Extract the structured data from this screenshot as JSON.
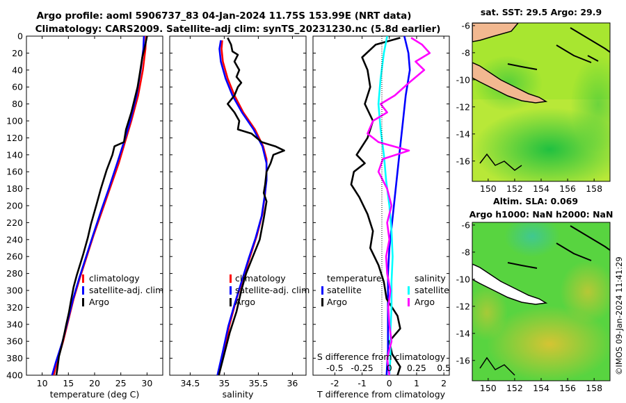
{
  "header": {
    "title_line1": "Argo profile: aoml 5906737_83 04-Jan-2024 11.75S 153.99E (NRT data)",
    "title_line2": "Climatology: CARS2009. Satellite-adj clim: synTS_20231230.nc (5.8d earlier)"
  },
  "colors": {
    "climatology": "#ff0000",
    "satellite": "#0000ff",
    "argo": "#000000",
    "s_satellite": "#00ffff",
    "s_argo": "#ff00ff"
  },
  "chart_data": [
    {
      "id": "temperature",
      "type": "line",
      "xlabel": "temperature (deg C)",
      "ylabel": "",
      "xlim": [
        7,
        33
      ],
      "ylim": [
        400,
        0
      ],
      "xticks": [
        "10",
        "15",
        "20",
        "25",
        "30"
      ],
      "yticks": [
        "0",
        "20",
        "40",
        "60",
        "80",
        "100",
        "120",
        "140",
        "160",
        "180",
        "200",
        "220",
        "240",
        "260",
        "280",
        "300",
        "320",
        "340",
        "360",
        "380",
        "400"
      ],
      "legend": [
        "climatology",
        "satellite-adj. clim",
        "Argo"
      ],
      "series": [
        {
          "name": "climatology",
          "color": "#ff0000",
          "points": [
            [
              29.8,
              0
            ],
            [
              29.7,
              15
            ],
            [
              29.2,
              40
            ],
            [
              28.3,
              70
            ],
            [
              27.0,
              100
            ],
            [
              25.8,
              125
            ],
            [
              24.6,
              150
            ],
            [
              22.9,
              180
            ],
            [
              21.5,
              205
            ],
            [
              19.8,
              235
            ],
            [
              18.5,
              260
            ],
            [
              17.2,
              285
            ],
            [
              16.0,
              310
            ],
            [
              15.0,
              335
            ],
            [
              14.0,
              360
            ],
            [
              12.8,
              385
            ],
            [
              12.2,
              400
            ]
          ]
        },
        {
          "name": "satellite-adj. clim",
          "color": "#0000ff",
          "points": [
            [
              29.4,
              0
            ],
            [
              29.3,
              15
            ],
            [
              28.8,
              40
            ],
            [
              28.0,
              70
            ],
            [
              26.8,
              100
            ],
            [
              25.6,
              125
            ],
            [
              24.3,
              150
            ],
            [
              22.7,
              180
            ],
            [
              21.3,
              205
            ],
            [
              19.7,
              235
            ],
            [
              18.4,
              260
            ],
            [
              17.1,
              285
            ],
            [
              15.9,
              310
            ],
            [
              14.9,
              335
            ],
            [
              13.9,
              360
            ],
            [
              12.6,
              385
            ],
            [
              11.9,
              400
            ]
          ]
        },
        {
          "name": "Argo",
          "color": "#000000",
          "points": [
            [
              30.0,
              0
            ],
            [
              29.8,
              6
            ],
            [
              29.6,
              12
            ],
            [
              29.1,
              25
            ],
            [
              28.6,
              45
            ],
            [
              28.2,
              60
            ],
            [
              27.6,
              75
            ],
            [
              27.0,
              90
            ],
            [
              26.0,
              110
            ],
            [
              25.6,
              125
            ],
            [
              23.8,
              130
            ],
            [
              23.4,
              140
            ],
            [
              22.3,
              158
            ],
            [
              21.2,
              180
            ],
            [
              20.3,
              200
            ],
            [
              19.3,
              222
            ],
            [
              18.7,
              238
            ],
            [
              17.8,
              258
            ],
            [
              17.2,
              270
            ],
            [
              16.6,
              282
            ],
            [
              16.0,
              296
            ],
            [
              15.5,
              312
            ],
            [
              15.1,
              326
            ],
            [
              14.6,
              340
            ],
            [
              14.2,
              352
            ],
            [
              13.7,
              366
            ],
            [
              13.2,
              378
            ],
            [
              12.9,
              392
            ],
            [
              12.7,
              400
            ]
          ]
        }
      ]
    },
    {
      "id": "salinity",
      "type": "line",
      "xlabel": "salinity",
      "ylabel": "",
      "xlim": [
        34.2,
        36.2
      ],
      "ylim": [
        400,
        0
      ],
      "xticks": [
        "34.5",
        "35",
        "35.5",
        "36"
      ],
      "legend": [
        "climatology",
        "satellite-adj. clim",
        "Argo"
      ],
      "series": [
        {
          "name": "climatology",
          "color": "#ff0000",
          "points": [
            [
              34.97,
              5
            ],
            [
              34.96,
              15
            ],
            [
              34.98,
              30
            ],
            [
              35.05,
              50
            ],
            [
              35.15,
              70
            ],
            [
              35.28,
              90
            ],
            [
              35.45,
              110
            ],
            [
              35.57,
              130
            ],
            [
              35.62,
              145
            ],
            [
              35.62,
              165
            ],
            [
              35.6,
              185
            ],
            [
              35.56,
              210
            ],
            [
              35.48,
              235
            ],
            [
              35.38,
              260
            ],
            [
              35.28,
              285
            ],
            [
              35.18,
              310
            ],
            [
              35.08,
              340
            ],
            [
              35.0,
              370
            ],
            [
              34.92,
              400
            ]
          ]
        },
        {
          "name": "satellite-adj. clim",
          "color": "#0000ff",
          "points": [
            [
              34.95,
              5
            ],
            [
              34.93,
              15
            ],
            [
              34.95,
              30
            ],
            [
              35.02,
              50
            ],
            [
              35.12,
              70
            ],
            [
              35.26,
              90
            ],
            [
              35.43,
              110
            ],
            [
              35.56,
              130
            ],
            [
              35.62,
              150
            ],
            [
              35.62,
              170
            ],
            [
              35.59,
              190
            ],
            [
              35.55,
              212
            ],
            [
              35.46,
              238
            ],
            [
              35.36,
              262
            ],
            [
              35.26,
              288
            ],
            [
              35.16,
              314
            ],
            [
              35.06,
              342
            ],
            [
              34.98,
              372
            ],
            [
              34.9,
              400
            ]
          ]
        },
        {
          "name": "Argo",
          "color": "#000000",
          "points": [
            [
              35.05,
              2
            ],
            [
              35.1,
              10
            ],
            [
              35.12,
              18
            ],
            [
              35.2,
              22
            ],
            [
              35.15,
              30
            ],
            [
              35.22,
              40
            ],
            [
              35.18,
              48
            ],
            [
              35.25,
              55
            ],
            [
              35.2,
              60
            ],
            [
              35.15,
              70
            ],
            [
              35.05,
              80
            ],
            [
              35.15,
              90
            ],
            [
              35.22,
              100
            ],
            [
              35.2,
              110
            ],
            [
              35.4,
              115
            ],
            [
              35.55,
              125
            ],
            [
              35.75,
              130
            ],
            [
              35.88,
              135
            ],
            [
              35.72,
              140
            ],
            [
              35.68,
              150
            ],
            [
              35.62,
              160
            ],
            [
              35.6,
              175
            ],
            [
              35.58,
              185
            ],
            [
              35.62,
              195
            ],
            [
              35.58,
              215
            ],
            [
              35.52,
              240
            ],
            [
              35.42,
              260
            ],
            [
              35.32,
              280
            ],
            [
              35.25,
              300
            ],
            [
              35.18,
              325
            ],
            [
              35.08,
              350
            ],
            [
              35.0,
              375
            ],
            [
              34.92,
              400
            ]
          ]
        }
      ]
    },
    {
      "id": "difference",
      "type": "line",
      "xlabel": "T difference from climatology",
      "xlabel_top": "S difference from climatology",
      "xlim": [
        -2.8,
        2.2
      ],
      "ylim": [
        400,
        0
      ],
      "xticks": [
        "-2",
        "-1",
        "0",
        "1",
        "2"
      ],
      "xticks_s": [
        "-0.5",
        "-0.25",
        "0",
        "0.25",
        "0.5"
      ],
      "legend_t_title": "temperature",
      "legend_s_title": "salinity",
      "legend_t": [
        "satellite",
        "Argo"
      ],
      "legend_s": [
        "satellite",
        "Argo"
      ],
      "series": [
        {
          "name": "T satellite",
          "color": "#0000ff",
          "points": [
            [
              0.55,
              0
            ],
            [
              0.7,
              20
            ],
            [
              0.75,
              40
            ],
            [
              0.6,
              70
            ],
            [
              0.5,
              100
            ],
            [
              0.4,
              130
            ],
            [
              0.3,
              160
            ],
            [
              0.2,
              190
            ],
            [
              0.1,
              220
            ],
            [
              0.0,
              250
            ],
            [
              -0.05,
              280
            ],
            [
              -0.05,
              310
            ],
            [
              -0.05,
              340
            ],
            [
              -0.05,
              370
            ],
            [
              -0.1,
              400
            ]
          ]
        },
        {
          "name": "T Argo",
          "color": "#000000",
          "points": [
            [
              0.4,
              2
            ],
            [
              -0.5,
              10
            ],
            [
              -1.0,
              25
            ],
            [
              -0.8,
              40
            ],
            [
              -0.7,
              60
            ],
            [
              -0.9,
              80
            ],
            [
              -0.6,
              100
            ],
            [
              -0.8,
              120
            ],
            [
              -1.2,
              140
            ],
            [
              -0.9,
              150
            ],
            [
              -1.3,
              160
            ],
            [
              -1.4,
              175
            ],
            [
              -1.1,
              190
            ],
            [
              -0.8,
              210
            ],
            [
              -0.6,
              230
            ],
            [
              -0.7,
              250
            ],
            [
              -0.4,
              270
            ],
            [
              -0.2,
              290
            ],
            [
              -0.1,
              310
            ],
            [
              0.3,
              330
            ],
            [
              0.4,
              345
            ],
            [
              0.0,
              360
            ],
            [
              0.1,
              375
            ],
            [
              0.4,
              390
            ],
            [
              0.3,
              400
            ]
          ]
        },
        {
          "name": "S satellite",
          "color": "#00ffff",
          "points": [
            [
              -0.02,
              0
            ],
            [
              -0.05,
              20
            ],
            [
              -0.08,
              50
            ],
            [
              -0.1,
              80
            ],
            [
              -0.08,
              110
            ],
            [
              -0.05,
              140
            ],
            [
              -0.03,
              170
            ],
            [
              0.0,
              200
            ],
            [
              0.02,
              230
            ],
            [
              0.03,
              260
            ],
            [
              0.02,
              290
            ],
            [
              0.02,
              320
            ],
            [
              0.01,
              350
            ],
            [
              0.01,
              380
            ],
            [
              0.0,
              400
            ]
          ]
        },
        {
          "name": "S Argo",
          "color": "#ff00ff",
          "points": [
            [
              0.2,
              2
            ],
            [
              0.3,
              10
            ],
            [
              0.37,
              20
            ],
            [
              0.24,
              30
            ],
            [
              0.32,
              40
            ],
            [
              0.18,
              55
            ],
            [
              0.05,
              70
            ],
            [
              -0.08,
              80
            ],
            [
              -0.02,
              90
            ],
            [
              -0.15,
              100
            ],
            [
              -0.2,
              115
            ],
            [
              -0.1,
              125
            ],
            [
              0.18,
              135
            ],
            [
              -0.06,
              145
            ],
            [
              -0.1,
              160
            ],
            [
              -0.02,
              180
            ],
            [
              0.02,
              200
            ],
            [
              -0.02,
              220
            ],
            [
              0.0,
              240
            ],
            [
              -0.03,
              260
            ],
            [
              -0.02,
              280
            ],
            [
              0.01,
              300
            ],
            [
              -0.01,
              320
            ],
            [
              0.0,
              340
            ],
            [
              0.02,
              360
            ],
            [
              -0.02,
              380
            ],
            [
              0.0,
              400
            ]
          ]
        }
      ]
    },
    {
      "id": "sst_map",
      "type": "heatmap",
      "title": "sat. SST: 29.5  Argo: 29.9",
      "xticks": [
        "150",
        "152",
        "154",
        "156",
        "158"
      ],
      "yticks": [
        "-6",
        "-8",
        "-10",
        "-12",
        "-14",
        "-16"
      ]
    },
    {
      "id": "sla_map",
      "type": "heatmap",
      "title_line1": "Altim. SLA: 0.069",
      "title_line2": "Argo h1000: NaN h2000: NaN",
      "xticks": [
        "150",
        "152",
        "154",
        "156",
        "158"
      ],
      "yticks": [
        "-6",
        "-8",
        "-10",
        "-12",
        "-14",
        "-16"
      ]
    }
  ],
  "footer": {
    "timestamp": "©IMOS 09-Jan-2024 11:41:29"
  }
}
